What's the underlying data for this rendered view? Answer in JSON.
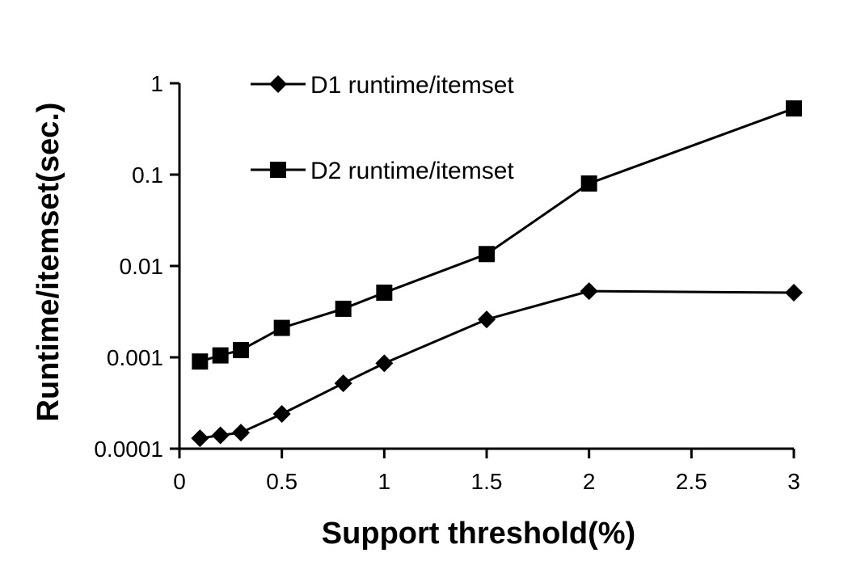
{
  "chart_data": {
    "type": "line",
    "title": "",
    "xlabel": "Support threshold(%)",
    "ylabel": "Runtime/itemset(sec.)",
    "y_scale": "log",
    "ylim": [
      0.0001,
      1
    ],
    "yticks": [
      0.0001,
      0.001,
      0.01,
      0.1,
      1
    ],
    "ytick_labels": [
      "0.0001",
      "0.001",
      "0.01",
      "0.1",
      "1"
    ],
    "xticks": [
      0,
      0.5,
      1,
      1.5,
      2,
      2.5,
      3
    ],
    "xtick_labels": [
      "0",
      "0.5",
      "1",
      "1.5",
      "2",
      "2.5",
      "3"
    ],
    "grid": false,
    "legend_position": "top-left",
    "series": [
      {
        "name": "D1 runtime/itemset",
        "marker": "diamond",
        "x": [
          0.1,
          0.2,
          0.3,
          0.5,
          0.8,
          1,
          1.5,
          2,
          3
        ],
        "y": [
          0.00013,
          0.00014,
          0.00015,
          0.00024,
          0.00052,
          0.00086,
          0.0026,
          0.0053,
          0.0051
        ]
      },
      {
        "name": "D2 runtime/itemset",
        "marker": "square",
        "x": [
          0.1,
          0.2,
          0.3,
          0.5,
          0.8,
          1,
          1.5,
          2,
          3
        ],
        "y": [
          0.0009,
          0.00105,
          0.0012,
          0.0021,
          0.0034,
          0.0051,
          0.0135,
          0.08,
          0.53
        ]
      }
    ]
  }
}
